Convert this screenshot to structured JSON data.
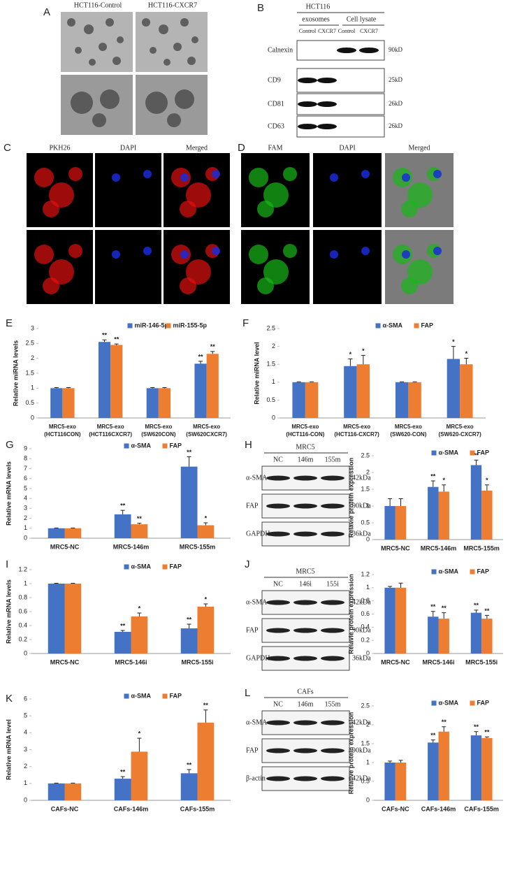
{
  "panels": {
    "A": {
      "label": "A",
      "titles": [
        "HCT116-Control",
        "HCT116-CXCR7"
      ]
    },
    "B": {
      "label": "B",
      "cell_line": "HCT116",
      "groups": [
        "exosomes",
        "Cell lysate"
      ],
      "lanes": [
        "Control",
        "CXCR7",
        "Control",
        "CXCR7"
      ],
      "rows": [
        [
          "Calnexin",
          "90kD"
        ],
        [
          "CD9",
          "25kD"
        ],
        [
          "CD81",
          "26kD"
        ],
        [
          "CD63",
          "26kD"
        ]
      ]
    },
    "C": {
      "label": "C",
      "titles": [
        "PKH26",
        "DAPI",
        "Merged"
      ]
    },
    "D": {
      "label": "D",
      "titles": [
        "FAM",
        "DAPI",
        "Merged"
      ]
    },
    "H": {
      "label": "H",
      "cell_line": "MRC5",
      "lanes": [
        "NC",
        "146m",
        "155m"
      ],
      "rows": [
        [
          "α-SMA",
          "42kDa"
        ],
        [
          "FAP",
          "90kDa"
        ],
        [
          "GAPDH",
          "36kDa"
        ]
      ]
    },
    "J": {
      "label": "J",
      "cell_line": "MRC5",
      "lanes": [
        "NC",
        "146i",
        "155i"
      ],
      "rows": [
        [
          "α-SMA",
          "42kDa"
        ],
        [
          "FAP",
          "90kDa"
        ],
        [
          "GAPDH",
          "36kDa"
        ]
      ]
    },
    "L": {
      "label": "L",
      "cell_line": "CAFs",
      "lanes": [
        "NC",
        "146m",
        "155m"
      ],
      "rows": [
        [
          "α-SMA",
          "42kDa"
        ],
        [
          "FAP",
          "90kDa"
        ],
        [
          "β-actin",
          "42kDa"
        ]
      ]
    }
  },
  "chart_data": [
    {
      "type": "bar",
      "panel_label": "E",
      "ylabel": "Relative miRNA levels",
      "legend": "top",
      "categories": [
        [
          "MRC5-exo",
          "(HCT116CON)"
        ],
        [
          "MRC5-exo",
          "(HCT116CXCR7)"
        ],
        [
          "MRC5-exo",
          "(SW620CON)"
        ],
        [
          "MRC5-exo",
          "(SW620CXCR7)"
        ]
      ],
      "ylim": [
        0,
        3
      ],
      "yticks": [
        0,
        0.5,
        1,
        1.5,
        2,
        2.5,
        3
      ],
      "series": [
        {
          "name": "miR-146-5p",
          "color": "#4472c4",
          "values": [
            1,
            2.55,
            1,
            1.82
          ],
          "errors": [
            0.02,
            0.07,
            0.02,
            0.08
          ],
          "annotations": [
            null,
            "**",
            null,
            "**"
          ]
        },
        {
          "name": "miR-155-5p",
          "color": "#ed7d31",
          "values": [
            1,
            2.45,
            1,
            2.15
          ],
          "errors": [
            0.02,
            0.03,
            0.02,
            0.08
          ],
          "annotations": [
            null,
            "**",
            null,
            "**"
          ]
        }
      ]
    },
    {
      "type": "bar",
      "panel_label": "F",
      "ylabel": "Relative miRNA level",
      "legend": "top",
      "categories": [
        [
          "MRC5-exo",
          "(HCT116-CON)"
        ],
        [
          "MRC5-exo",
          "(HCT116-CXCR7)"
        ],
        [
          "MRC5-exo",
          "(SW620-CON)"
        ],
        [
          "MRC5-exo",
          "(SW620-CXCR7)"
        ]
      ],
      "ylim": [
        0,
        2.5
      ],
      "yticks": [
        0,
        0.5,
        1,
        1.5,
        2,
        2.5
      ],
      "series": [
        {
          "name": "α-SMA",
          "color": "#4472c4",
          "values": [
            1,
            1.45,
            1,
            1.65
          ],
          "errors": [
            0.01,
            0.2,
            0.01,
            0.35
          ],
          "annotations": [
            null,
            "*",
            null,
            "*"
          ]
        },
        {
          "name": "FAP",
          "color": "#ed7d31",
          "values": [
            1,
            1.5,
            1,
            1.5
          ],
          "errors": [
            0.01,
            0.25,
            0.01,
            0.17
          ],
          "annotations": [
            null,
            "*",
            null,
            "*"
          ]
        }
      ]
    },
    {
      "type": "bar",
      "panel_label": "G",
      "ylabel": "Relative mRNA levels",
      "legend": "top",
      "categories": [
        "MRC5-NC",
        "MRC5-146m",
        "MRC5-155m"
      ],
      "ylim": [
        0,
        9
      ],
      "yticks": [
        0,
        1,
        2,
        3,
        4,
        5,
        6,
        7,
        8,
        9
      ],
      "series": [
        {
          "name": "α-SMA",
          "color": "#4472c4",
          "values": [
            1,
            2.4,
            7.2
          ],
          "errors": [
            0.03,
            0.4,
            1.0
          ],
          "annotations": [
            null,
            "**",
            "**"
          ]
        },
        {
          "name": "FAP",
          "color": "#ed7d31",
          "values": [
            1,
            1.4,
            1.3
          ],
          "errors": [
            0.03,
            0.1,
            0.25
          ],
          "annotations": [
            null,
            "**",
            "*"
          ]
        }
      ]
    },
    {
      "type": "bar",
      "ylabel": "Relavie protein expression",
      "legend": "top",
      "categories": [
        "MRC5-NC",
        "MRC5-146m",
        "MRC5-155m"
      ],
      "ylim": [
        0,
        2.5
      ],
      "yticks": [
        0,
        0.5,
        1,
        1.5,
        2,
        2.5
      ],
      "series": [
        {
          "name": "α-SMA",
          "color": "#4472c4",
          "values": [
            1,
            1.57,
            2.22
          ],
          "errors": [
            0.22,
            0.18,
            0.15
          ],
          "annotations": [
            null,
            "**",
            "**"
          ]
        },
        {
          "name": "FAP",
          "color": "#ed7d31",
          "values": [
            1,
            1.43,
            1.46
          ],
          "errors": [
            0.22,
            0.2,
            0.17
          ],
          "annotations": [
            null,
            "*",
            "*"
          ]
        }
      ]
    },
    {
      "type": "bar",
      "panel_label": "I",
      "ylabel": "Relative mRNA levels",
      "legend": "top",
      "categories": [
        "MRC5-NC",
        "MRC5-146i",
        "MRC5-155i"
      ],
      "ylim": [
        0,
        1.2
      ],
      "yticks": [
        0,
        0.2,
        0.4,
        0.6,
        0.8,
        1,
        1.2
      ],
      "series": [
        {
          "name": "α-SMA",
          "color": "#4472c4",
          "values": [
            1,
            0.31,
            0.36
          ],
          "errors": [
            0.005,
            0.02,
            0.06
          ],
          "annotations": [
            null,
            "**",
            "**"
          ]
        },
        {
          "name": "FAP",
          "color": "#ed7d31",
          "values": [
            1,
            0.53,
            0.67
          ],
          "errors": [
            0.005,
            0.05,
            0.04
          ],
          "annotations": [
            null,
            "*",
            "*"
          ]
        }
      ]
    },
    {
      "type": "bar",
      "ylabel": "Relavie protein expression",
      "legend": "top",
      "categories": [
        "MRC5-NC",
        "MRC5-146i",
        "MRC5-155i"
      ],
      "ylim": [
        0,
        1.2
      ],
      "yticks": [
        0,
        0.2,
        0.4,
        0.6,
        0.8,
        1,
        1.2
      ],
      "series": [
        {
          "name": "α-SMA",
          "color": "#4472c4",
          "values": [
            1,
            0.56,
            0.62
          ],
          "errors": [
            0.02,
            0.08,
            0.04
          ],
          "annotations": [
            null,
            "**",
            "**"
          ]
        },
        {
          "name": "FAP",
          "color": "#ed7d31",
          "values": [
            1,
            0.53,
            0.53
          ],
          "errors": [
            0.07,
            0.09,
            0.05
          ],
          "annotations": [
            null,
            "**",
            "**"
          ]
        }
      ]
    },
    {
      "type": "bar",
      "panel_label": "K",
      "ylabel": "Relative mRNA level",
      "legend": "top",
      "categories": [
        "CAFs-NC",
        "CAFs-146m",
        "CAFs-155m"
      ],
      "ylim": [
        0,
        6
      ],
      "yticks": [
        0,
        1,
        2,
        3,
        4,
        5,
        6
      ],
      "series": [
        {
          "name": "α-SMA",
          "color": "#4472c4",
          "values": [
            1,
            1.28,
            1.6
          ],
          "errors": [
            0.02,
            0.12,
            0.22
          ],
          "annotations": [
            null,
            "**",
            "**"
          ]
        },
        {
          "name": "FAP",
          "color": "#ed7d31",
          "values": [
            1,
            2.88,
            4.6
          ],
          "errors": [
            0.02,
            0.8,
            0.75
          ],
          "annotations": [
            null,
            "*",
            "**"
          ]
        }
      ]
    },
    {
      "type": "bar",
      "ylabel": "Relative protein expression",
      "legend": "top",
      "categories": [
        "CAFs-NC",
        "CAFs-146m",
        "CAFs-155m"
      ],
      "ylim": [
        0,
        2.5
      ],
      "yticks": [
        0,
        0.5,
        1,
        1.5,
        2,
        2.5
      ],
      "series": [
        {
          "name": "α-SMA",
          "color": "#4472c4",
          "values": [
            1,
            1.53,
            1.72
          ],
          "errors": [
            0.04,
            0.07,
            0.1
          ],
          "annotations": [
            null,
            "**",
            "**"
          ]
        },
        {
          "name": "FAP",
          "color": "#ed7d31",
          "values": [
            1,
            1.82,
            1.65
          ],
          "errors": [
            0.06,
            0.13,
            0.03
          ],
          "annotations": [
            null,
            "**",
            "**"
          ]
        }
      ]
    }
  ]
}
